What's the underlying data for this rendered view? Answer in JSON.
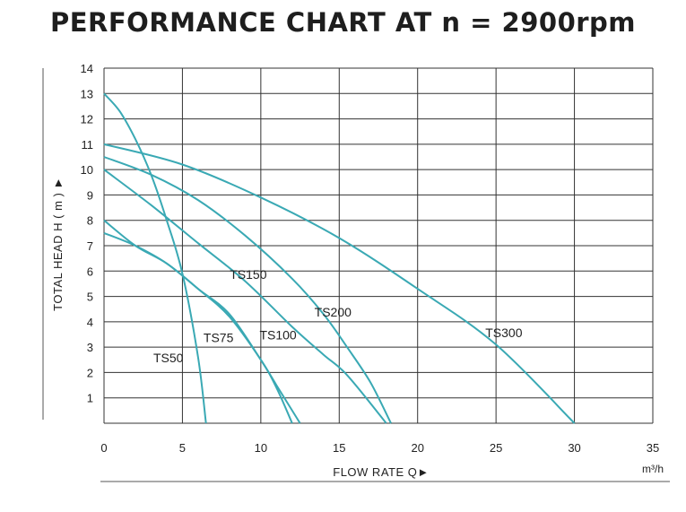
{
  "chart_data": {
    "type": "line",
    "title": "PERFORMANCE CHART AT n = 2900rpm",
    "xlabel": "FLOW RATE Q►",
    "xunit": "m³/h",
    "ylabel": "TOTAL HEAD H ( m ) ►",
    "xlim": [
      0,
      35
    ],
    "ylim": [
      0,
      14
    ],
    "xticks": [
      0,
      5,
      10,
      15,
      20,
      25,
      30,
      35
    ],
    "yticks": [
      1,
      2,
      3,
      4,
      5,
      6,
      7,
      8,
      9,
      10,
      11,
      12,
      13,
      14
    ],
    "grid": true,
    "line_color": "#3aa9b4",
    "series": [
      {
        "name": "TS50",
        "x": [
          0,
          1,
          2,
          3,
          4,
          5,
          6,
          6.5
        ],
        "y": [
          13,
          12.3,
          11.2,
          9.8,
          8,
          5.9,
          2.6,
          0
        ]
      },
      {
        "name": "TS75",
        "x": [
          0,
          2,
          4,
          6,
          8,
          10,
          11,
          12
        ],
        "y": [
          7.5,
          7.0,
          6.3,
          5.3,
          4.2,
          2.5,
          1.4,
          0
        ]
      },
      {
        "name": "TS100",
        "x": [
          0,
          2,
          4,
          6,
          8,
          10,
          11,
          12.5
        ],
        "y": [
          8,
          7.0,
          6.3,
          5.3,
          4.3,
          2.5,
          1.5,
          0
        ]
      },
      {
        "name": "TS150",
        "x": [
          0,
          3,
          6,
          9,
          12,
          14,
          15.5,
          18
        ],
        "y": [
          10,
          8.6,
          7.1,
          5.6,
          3.8,
          2.7,
          1.9,
          0
        ]
      },
      {
        "name": "TS200",
        "x": [
          0,
          3,
          6,
          9,
          12,
          14,
          15.5,
          17,
          18.3
        ],
        "y": [
          10.5,
          9.8,
          8.8,
          7.4,
          5.7,
          4.3,
          3.0,
          1.6,
          0
        ]
      },
      {
        "name": "TS300",
        "x": [
          0,
          5,
          10,
          15,
          20,
          25,
          30
        ],
        "y": [
          11,
          10.2,
          8.9,
          7.3,
          5.3,
          3.1,
          0
        ]
      }
    ],
    "labels": [
      {
        "text": "TS50",
        "x": 4.1,
        "y": 2.4
      },
      {
        "text": "TS75",
        "x": 7.3,
        "y": 3.2
      },
      {
        "text": "TS100",
        "x": 11.1,
        "y": 3.3
      },
      {
        "text": "TS150",
        "x": 9.2,
        "y": 5.7
      },
      {
        "text": "TS200",
        "x": 14.6,
        "y": 4.2
      },
      {
        "text": "TS300",
        "x": 25.5,
        "y": 3.4
      }
    ]
  }
}
